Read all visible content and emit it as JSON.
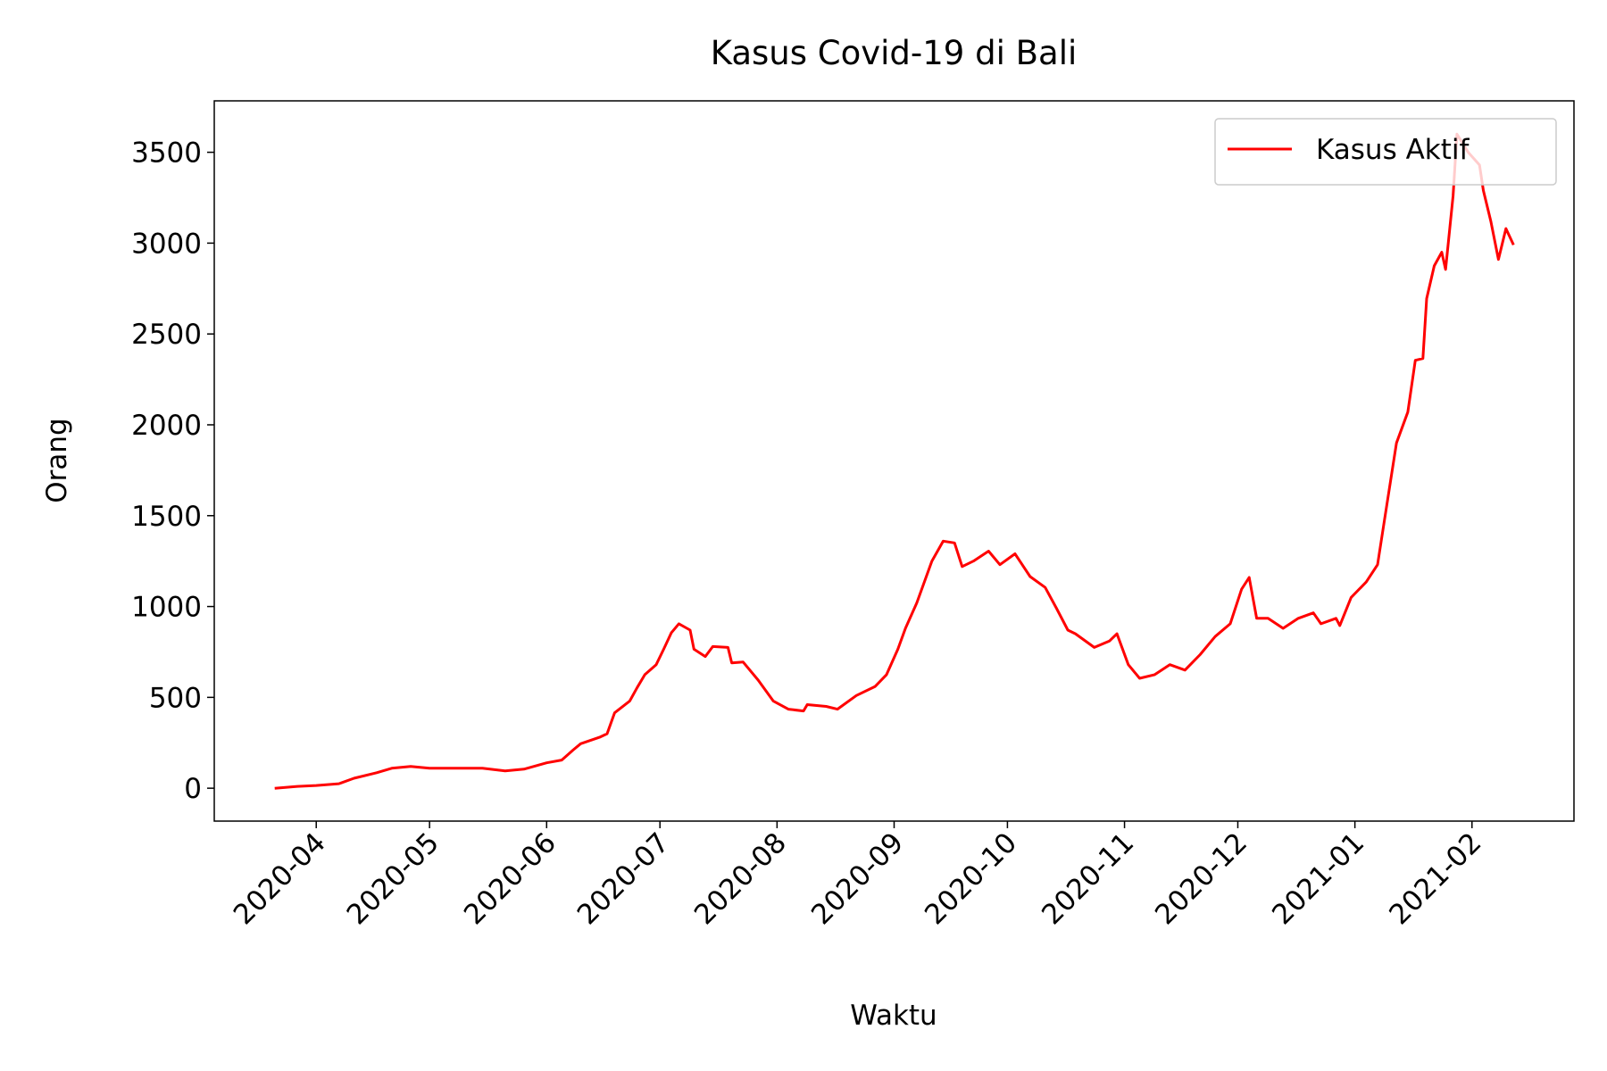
{
  "chart_data": {
    "type": "line",
    "title": "Kasus Covid-19 di Bali",
    "xlabel": "Waktu",
    "ylabel": "Orang",
    "x": [
      -11,
      -5,
      0,
      6,
      10,
      16,
      20,
      25,
      30,
      36,
      44,
      50,
      55,
      61,
      65,
      68,
      70,
      75,
      77,
      79,
      83,
      85,
      87,
      90,
      92,
      94,
      96,
      99,
      100,
      103,
      105,
      109,
      110,
      113,
      117,
      121,
      125,
      129,
      130,
      135,
      138,
      143,
      148,
      151,
      154,
      156,
      159,
      163,
      166,
      169,
      171,
      174,
      178,
      181,
      185,
      189,
      193,
      196,
      199,
      201,
      206,
      210,
      212,
      215,
      218,
      222,
      226,
      230,
      234,
      238,
      242,
      245,
      247,
      249,
      252,
      256,
      260,
      264,
      266,
      270,
      271,
      274,
      278,
      281,
      283,
      286,
      289,
      291,
      293,
      294,
      296,
      298,
      299,
      301,
      302,
      305,
      308,
      309,
      311,
      313,
      315,
      317
    ],
    "series": [
      {
        "name": "Kasus Aktif",
        "color": "#ff0000",
        "values": [
          0,
          10,
          15,
          25,
          55,
          85,
          110,
          120,
          110,
          110,
          110,
          95,
          105,
          140,
          155,
          210,
          245,
          280,
          300,
          415,
          480,
          555,
          625,
          680,
          765,
          855,
          905,
          870,
          765,
          725,
          780,
          775,
          690,
          695,
          595,
          480,
          435,
          425,
          460,
          450,
          435,
          510,
          560,
          625,
          765,
          880,
          1020,
          1250,
          1360,
          1350,
          1220,
          1250,
          1305,
          1230,
          1290,
          1165,
          1105,
          990,
          870,
          850,
          775,
          810,
          850,
          680,
          605,
          625,
          680,
          650,
          735,
          835,
          905,
          1095,
          1160,
          935,
          935,
          880,
          935,
          965,
          905,
          935,
          895,
          1050,
          1135,
          1230,
          1500,
          1900,
          2070,
          2355,
          2365,
          2695,
          2875,
          2950,
          2855,
          3260,
          3600,
          3500,
          3430,
          3290,
          3120,
          2910,
          3080,
          2990
        ]
      }
    ],
    "xlim": [
      -27,
      333
    ],
    "ylim": [
      -181,
      3783
    ],
    "xticks": [
      {
        "value": 0,
        "label": "2020-04"
      },
      {
        "value": 30,
        "label": "2020-05"
      },
      {
        "value": 61,
        "label": "2020-06"
      },
      {
        "value": 91,
        "label": "2020-07"
      },
      {
        "value": 122,
        "label": "2020-08"
      },
      {
        "value": 153,
        "label": "2020-09"
      },
      {
        "value": 183,
        "label": "2020-10"
      },
      {
        "value": 214,
        "label": "2020-11"
      },
      {
        "value": 244,
        "label": "2020-12"
      },
      {
        "value": 275,
        "label": "2021-01"
      },
      {
        "value": 306,
        "label": "2021-02"
      }
    ],
    "yticks": [
      0,
      500,
      1000,
      1500,
      2000,
      2500,
      3000,
      3500
    ],
    "legend": "upper right"
  }
}
